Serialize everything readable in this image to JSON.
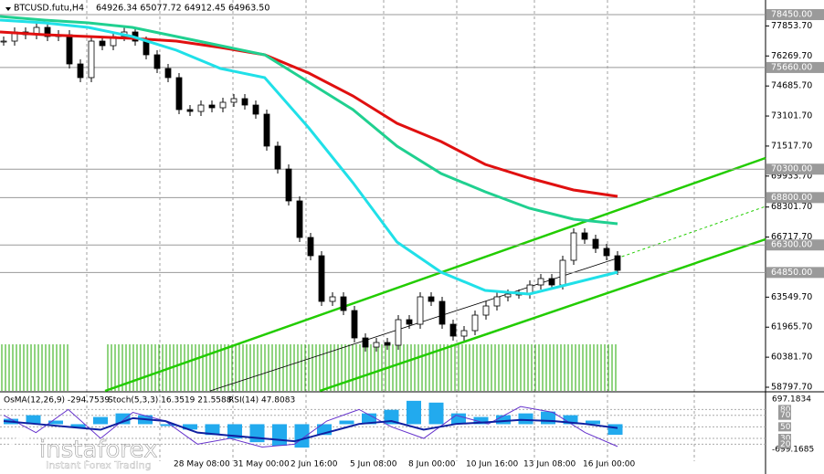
{
  "header": {
    "symbol": "BTCUSD.futu,H4",
    "ohlc": "64926.34 65077.72 64912.45 64963.50"
  },
  "chart_data": {
    "type": "candlestick",
    "close": [
      77053,
      77535,
      77391,
      77776,
      77294,
      77391,
      75849,
      75127,
      77053,
      76812,
      77294,
      77535,
      77053,
      76331,
      75608,
      75127,
      73441,
      73344,
      73681,
      73537,
      73826,
      74019,
      73681,
      73200,
      71515,
      70307,
      68624,
      66697,
      65733,
      63325,
      63566,
      62843,
      61398,
      60916,
      61157,
      61013,
      62361,
      62121,
      63566,
      63325,
      62121,
      61495,
      61784,
      62602,
      63084,
      63566,
      63710,
      63710,
      64192,
      64529,
      64192,
      65493,
      66938,
      66601,
      66119,
      65733,
      64964
    ],
    "color": "#000000",
    "moving_averages": [
      {
        "color": "#e01010",
        "values": [
          77535,
          77391,
          77294,
          77198,
          77053,
          76716,
          76331,
          75368,
          74163,
          72718,
          71754,
          70550,
          69828,
          69202,
          68865
        ]
      },
      {
        "color": "#20d090",
        "values": [
          78354,
          78161,
          78017,
          77776,
          77294,
          76812,
          76331,
          74886,
          73441,
          71515,
          70069,
          69106,
          68239,
          67660,
          67419
        ]
      },
      {
        "color": "#20e0e8",
        "values": [
          78161,
          78017,
          77776,
          77294,
          76572,
          75608,
          75127,
          72477,
          69587,
          66456,
          64866,
          63903,
          63710,
          64288,
          64866
        ]
      }
    ],
    "ylim": [
      58605,
      79221
    ],
    "yticks": [
      {
        "value": 77853.7,
        "label": "77853.70"
      },
      {
        "value": 76269.7,
        "label": "76269.70"
      },
      {
        "value": 74685.7,
        "label": "74685.70"
      },
      {
        "value": 73101.7,
        "label": "73101.70"
      },
      {
        "value": 71517.7,
        "label": "71517.70"
      },
      {
        "value": 69933.7,
        "label": "69933.70"
      },
      {
        "value": 68301.7,
        "label": "68301.70"
      },
      {
        "value": 66717.7,
        "label": "66717.70"
      },
      {
        "value": 63549.7,
        "label": "63549.70"
      },
      {
        "value": 61965.7,
        "label": "61965.70"
      },
      {
        "value": 60381.7,
        "label": "60381.70"
      },
      {
        "value": 58797.7,
        "label": "58797.70"
      }
    ],
    "levels": [
      {
        "value": 78450,
        "label": "78450.00"
      },
      {
        "value": 75660,
        "label": "75660.00"
      },
      {
        "value": 70300,
        "label": "70300.00"
      },
      {
        "value": 68800,
        "label": "68800.00"
      },
      {
        "value": 66300,
        "label": "66300.00"
      },
      {
        "value": 64850,
        "label": "64850.00"
      }
    ],
    "xlabels": [
      "28 May 08:00",
      "31 May 00:00",
      "2 Jun 16:00",
      "5 Jun 08:00",
      "8 Jun 00:00",
      "10 Jun 16:00",
      "13 Jun 08:00",
      "16 Jun 00:00"
    ]
  },
  "indicators": {
    "osma_label": "OsMA(12,26,9) -294.7539",
    "stoch_label": "Stoch(5,3,3) 16.3519 21.5588",
    "rsi_label": "RSI(14) 47.8083",
    "osma_lim": [
      -699.1685,
      697.1834
    ],
    "osma_ticks": [
      {
        "value": 697.1834,
        "label": "697.1834"
      },
      {
        "value": -699.1685,
        "label": "-699.1685"
      }
    ],
    "osc_levels": [
      80,
      70,
      50,
      30,
      20
    ],
    "osma": [
      150,
      250,
      100,
      -100,
      200,
      300,
      250,
      -50,
      -150,
      -300,
      -400,
      -500,
      -600,
      -650,
      -300,
      100,
      300,
      400,
      650,
      600,
      300,
      200,
      250,
      300,
      350,
      250,
      100,
      -295
    ],
    "rsi": [
      60,
      55,
      50,
      45,
      65,
      60,
      40,
      35,
      30,
      25,
      40,
      55,
      60,
      45,
      55,
      58,
      62,
      60,
      55,
      48
    ],
    "stoch": [
      70,
      40,
      80,
      30,
      75,
      60,
      20,
      30,
      15,
      20,
      60,
      80,
      50,
      30,
      70,
      55,
      85,
      75,
      40,
      16
    ]
  },
  "watermark": {
    "brand": "instaforex",
    "tagline": "Instant Forex Trading"
  }
}
